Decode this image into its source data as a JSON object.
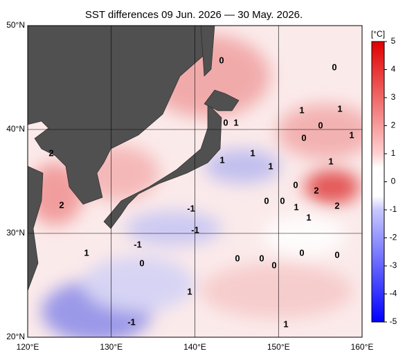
{
  "title": "SST differences 09 Jun. 2026 — 30 May. 2026.",
  "lon_ticks": [
    {
      "value": 120,
      "label": "120°E"
    },
    {
      "value": 130,
      "label": "130°E"
    },
    {
      "value": 140,
      "label": "140°E"
    },
    {
      "value": 150,
      "label": "150°E"
    },
    {
      "value": 160,
      "label": "160°E"
    }
  ],
  "lat_ticks": [
    {
      "value": 50,
      "label": "50°N"
    },
    {
      "value": 40,
      "label": "40°N"
    },
    {
      "value": 30,
      "label": "30°N"
    },
    {
      "value": 20,
      "label": "20°N"
    }
  ],
  "colorbar": {
    "unit": "[°C]",
    "ticks": [
      5,
      4,
      3,
      2,
      1,
      0,
      -1,
      -2,
      -3,
      -4,
      -5
    ]
  },
  "contour_labels": [
    "0",
    "0",
    "1",
    "1",
    "0",
    "1",
    "0",
    "0",
    "1",
    "2",
    "1",
    "1",
    "1",
    "1",
    "0",
    "2",
    "2",
    "-1",
    "0",
    "0",
    "1",
    "2",
    "1",
    "-1",
    "-1",
    "1",
    "0",
    "0",
    "0",
    "0",
    "0",
    "0",
    "1",
    "-1",
    "1"
  ]
}
